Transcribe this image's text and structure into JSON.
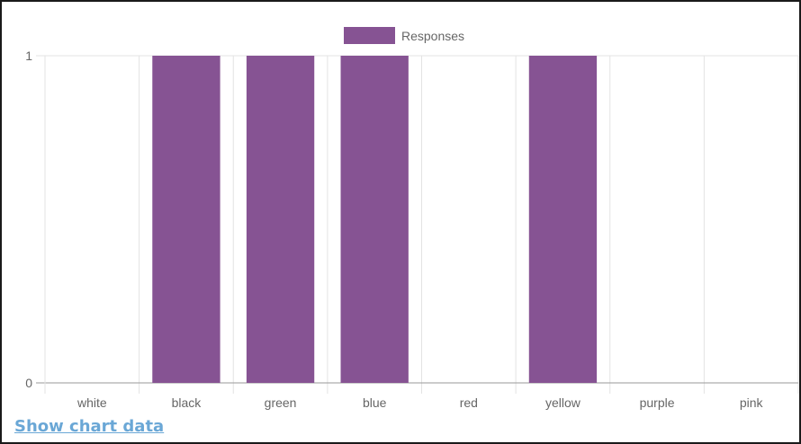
{
  "chart_data": {
    "type": "bar",
    "categories": [
      "white",
      "black",
      "green",
      "blue",
      "red",
      "yellow",
      "purple",
      "pink"
    ],
    "series": [
      {
        "name": "Responses",
        "values": [
          0,
          1,
          1,
          1,
          0,
          1,
          0,
          0
        ]
      }
    ],
    "ylim": [
      0,
      1
    ],
    "yticks": [
      "0",
      "1"
    ],
    "grid": true,
    "legend": "top-center",
    "colors": {
      "bar": "#865393",
      "grid": "#e3e3e3",
      "axis": "#9a9a9a",
      "text": "#666666"
    }
  },
  "footer": {
    "link_label": "Show chart data"
  }
}
